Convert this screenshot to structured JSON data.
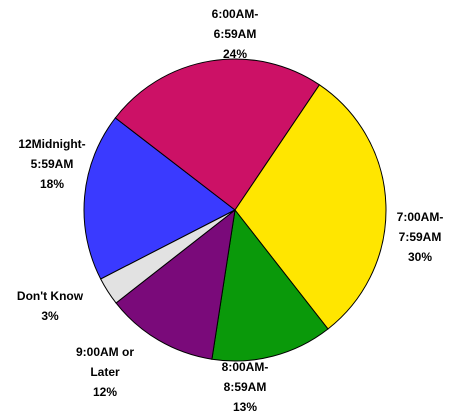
{
  "chart_data": {
    "type": "pie",
    "categories": [
      [
        "12Midnight-",
        "5:59AM"
      ],
      [
        "6:00AM-",
        "6:59AM"
      ],
      [
        "7:00AM-",
        "7:59AM"
      ],
      [
        "8:00AM-",
        "8:59AM"
      ],
      [
        "9:00AM or",
        "Later"
      ],
      [
        "Don't Know"
      ]
    ],
    "values": [
      18,
      24,
      30,
      13,
      12,
      3
    ],
    "value_labels": [
      "18%",
      "24%",
      "30%",
      "13%",
      "12%",
      "3%"
    ],
    "colors": [
      "#3a3aff",
      "#cc1166",
      "#ffe600",
      "#0a990a",
      "#7a0a7a",
      "#e2e2e2"
    ]
  }
}
